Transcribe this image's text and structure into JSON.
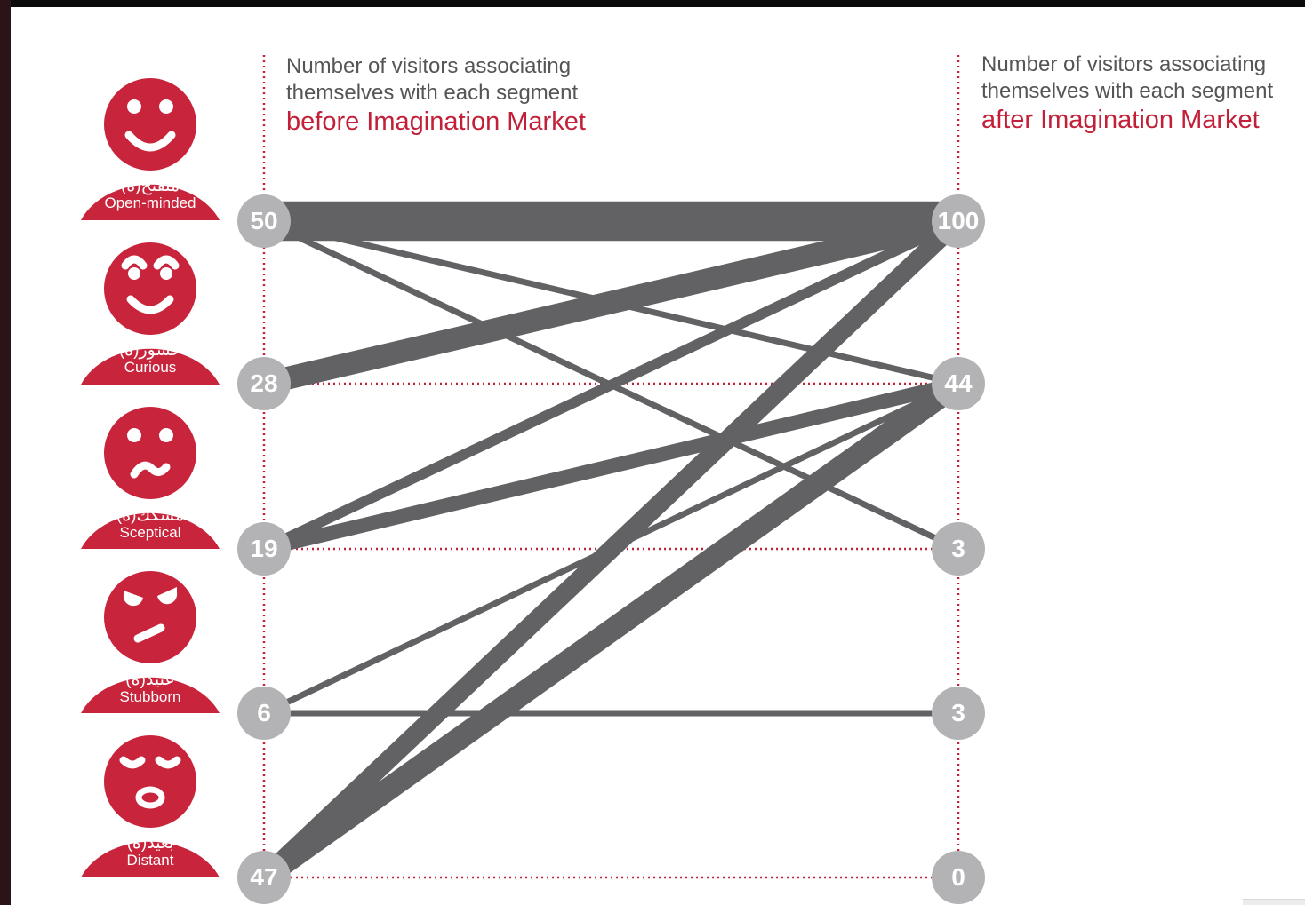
{
  "headers": {
    "before": {
      "line1": "Number of visitors associating",
      "line2": "themselves with each segment",
      "accent": "before Imagination Market"
    },
    "after": {
      "line1": "Number of visitors associating",
      "line2": "themselves with each segment",
      "accent": "after Imagination Market"
    }
  },
  "segments": [
    {
      "arabic": "منفتح(ة)",
      "english": "Open-minded",
      "face": "happy-face-icon",
      "before": "50",
      "after": "100"
    },
    {
      "arabic": "حشور(ة)",
      "english": "Curious",
      "face": "curious-face-icon",
      "before": "28",
      "after": "44"
    },
    {
      "arabic": "مشكك(ة)",
      "english": "Sceptical",
      "face": "sceptical-face-icon",
      "before": "19",
      "after": "3"
    },
    {
      "arabic": "عنيد(ة)",
      "english": "Stubborn",
      "face": "stubborn-face-icon",
      "before": "6",
      "after": "3"
    },
    {
      "arabic": "بعيد(ة)",
      "english": "Distant",
      "face": "distant-face-icon",
      "before": "47",
      "after": "0"
    }
  ],
  "flows": [
    {
      "from": 0,
      "to": 0,
      "weight": 9
    },
    {
      "from": 0,
      "to": 1,
      "weight": 1
    },
    {
      "from": 0,
      "to": 2,
      "weight": 1
    },
    {
      "from": 1,
      "to": 0,
      "weight": 5
    },
    {
      "from": 2,
      "to": 0,
      "weight": 2
    },
    {
      "from": 2,
      "to": 1,
      "weight": 3
    },
    {
      "from": 3,
      "to": 1,
      "weight": 1
    },
    {
      "from": 3,
      "to": 3,
      "weight": 1
    },
    {
      "from": 4,
      "to": 0,
      "weight": 4
    },
    {
      "from": 4,
      "to": 1,
      "weight": 5
    }
  ],
  "colors": {
    "accent": "#c22038",
    "face": "#c8243c",
    "node": "#b3b3b5",
    "flow": "#626264",
    "header_text": "#555557"
  }
}
